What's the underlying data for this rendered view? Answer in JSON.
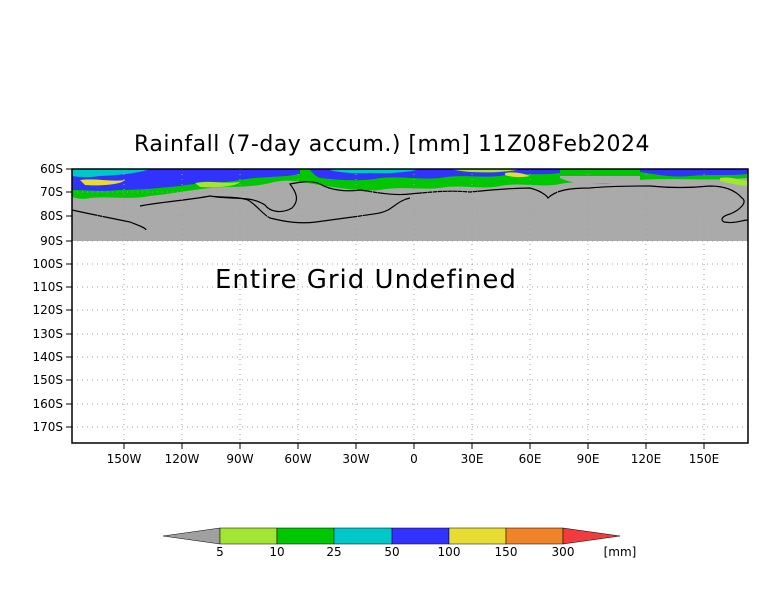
{
  "title": "Rainfall (7-day accum.) [mm] 11Z08Feb2024",
  "message": "Entire Grid Undefined",
  "y_ticks": [
    "60S",
    "70S",
    "80S",
    "90S",
    "100S",
    "110S",
    "120S",
    "130S",
    "140S",
    "150S",
    "160S",
    "170S"
  ],
  "x_ticks": [
    "150W",
    "120W",
    "90W",
    "60W",
    "30W",
    "0",
    "30E",
    "60E",
    "90E",
    "120E",
    "150E"
  ],
  "legend": {
    "labels": [
      "5",
      "10",
      "25",
      "50",
      "100",
      "150",
      "300"
    ],
    "unit": "[mm]",
    "colors": {
      "below": "#a0a0a0",
      "bins": [
        "#a0e632",
        "#00c800",
        "#00c8c8",
        "#3232ff",
        "#e6dc32",
        "#f08228"
      ],
      "above": "#f03c3c"
    }
  },
  "colors": {
    "land_undefined": "#aaaaaa",
    "frame": "#000000",
    "grid": "#a0a0a0"
  }
}
